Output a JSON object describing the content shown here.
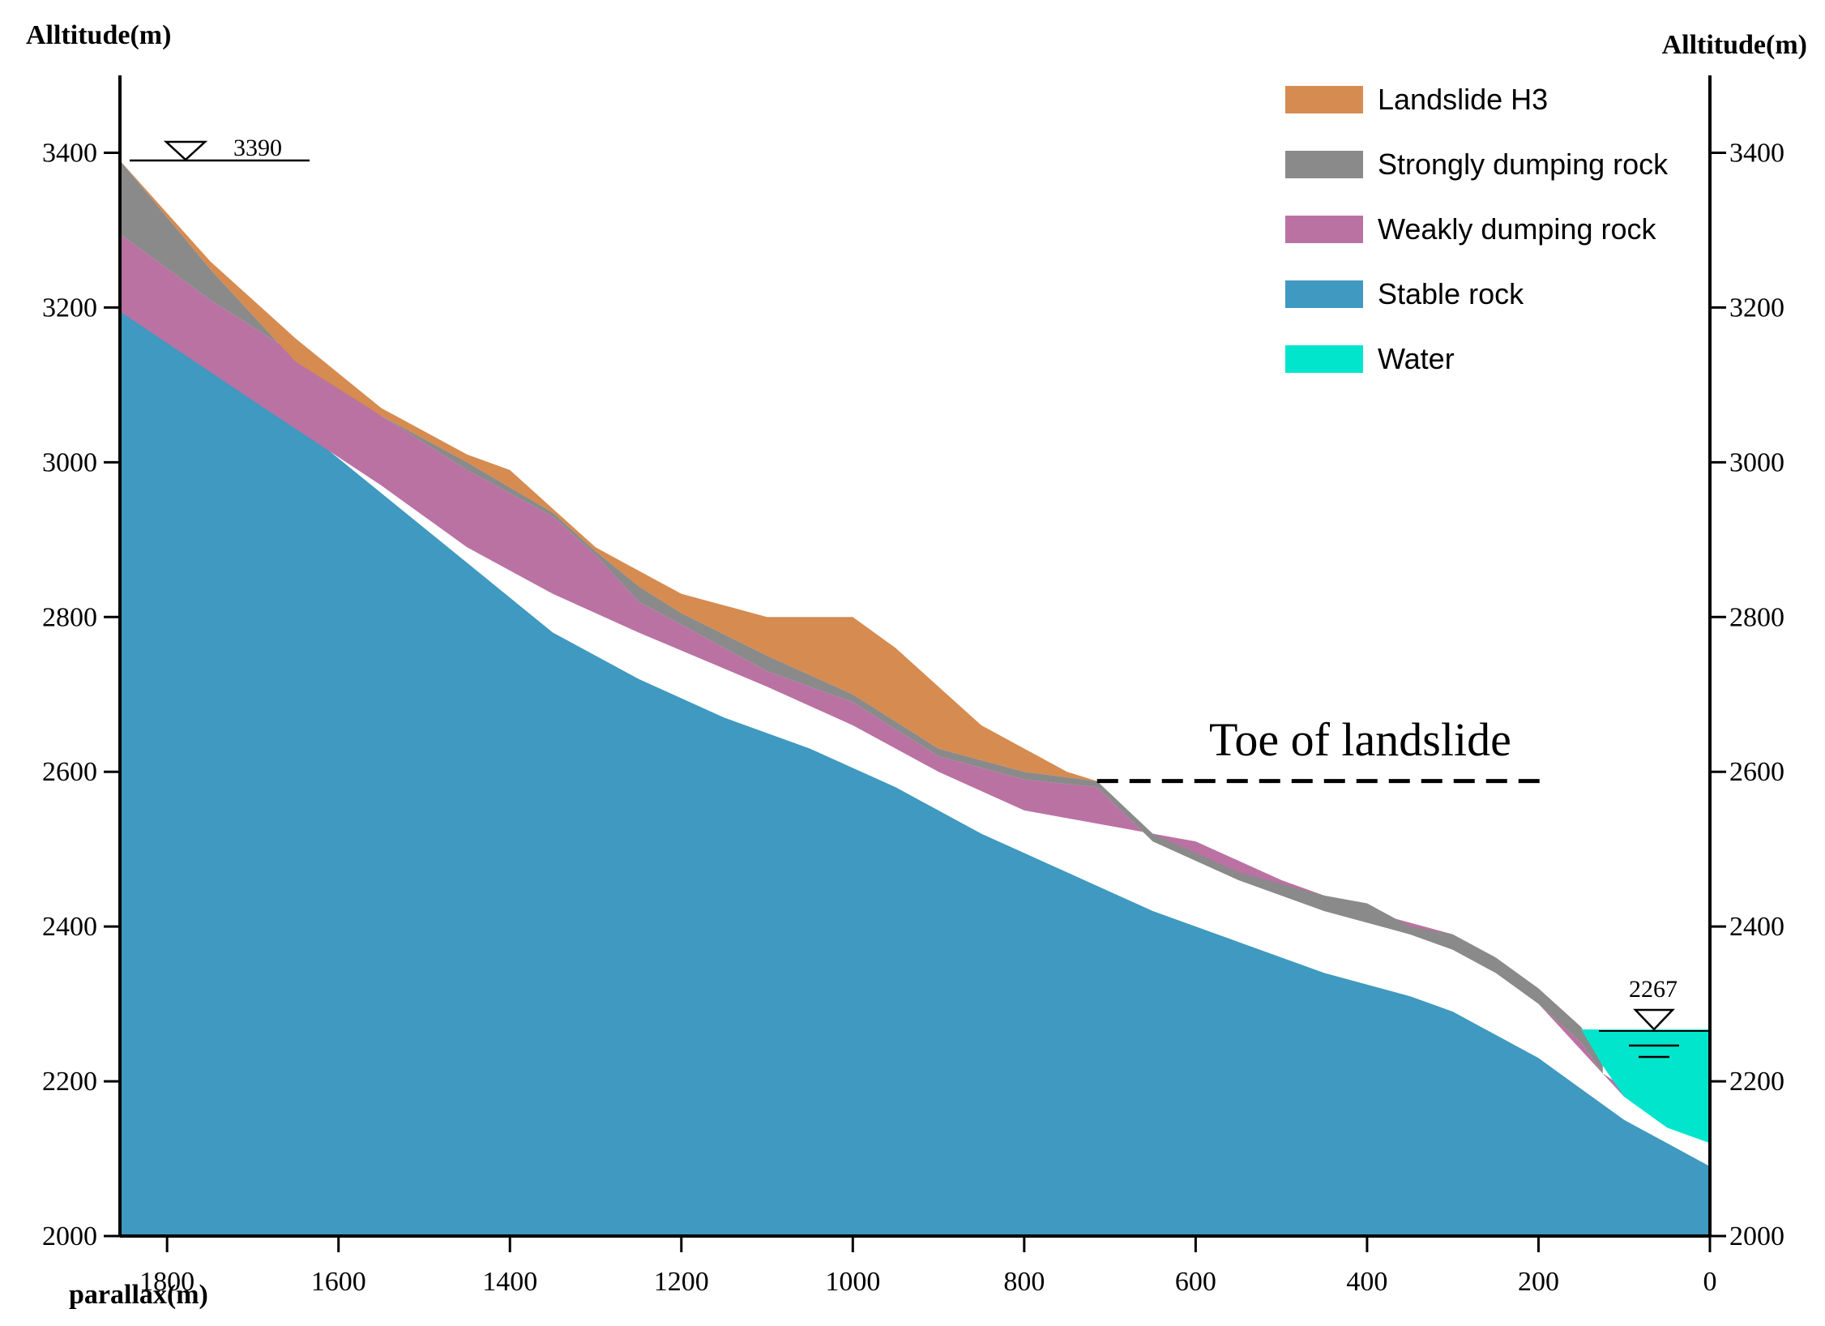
{
  "axes": {
    "left_title": "Alltitude(m)",
    "right_title": "Alltitude(m)",
    "x_title": "parallax(m)",
    "y_ticks": [
      "2000",
      "2200",
      "2400",
      "2600",
      "2800",
      "3000",
      "3200",
      "3400"
    ],
    "x_ticks": [
      "1800",
      "1600",
      "1400",
      "1200",
      "1000",
      "800",
      "600",
      "400",
      "200",
      "0"
    ],
    "x_range": [
      1855,
      0
    ],
    "y_range": [
      2000,
      3500
    ]
  },
  "annotations": {
    "top_level": "3390",
    "water_level": "2267",
    "toe_label": "Toe of landslide",
    "toe_elevation": 2588,
    "toe_parallax_range": [
      715,
      195
    ]
  },
  "legend": {
    "items": [
      {
        "label": "Landslide H3",
        "color": "#d68b50"
      },
      {
        "label": "Strongly dumping rock",
        "color": "#8a8a8a"
      },
      {
        "label": "Weakly dumping rock",
        "color": "#ba72a3"
      },
      {
        "label": "Stable rock",
        "color": "#3f99c0"
      },
      {
        "label": "Water",
        "color": "#00e5cc"
      }
    ]
  },
  "chart_data": {
    "type": "area",
    "title": "",
    "xlabel": "parallax(m)",
    "ylabel": "Alltitude(m)",
    "xlim": [
      1855,
      0
    ],
    "ylim": [
      2000,
      3500
    ],
    "layers": [
      {
        "name": "Landslide H3 surface",
        "points": [
          [
            1855,
            3390
          ],
          [
            1750,
            3260
          ],
          [
            1650,
            3160
          ],
          [
            1550,
            3070
          ],
          [
            1450,
            3010
          ],
          [
            1400,
            2990
          ],
          [
            1350,
            2940
          ],
          [
            1300,
            2890
          ],
          [
            1250,
            2860
          ],
          [
            1200,
            2830
          ],
          [
            1100,
            2800
          ],
          [
            1000,
            2800
          ],
          [
            950,
            2760
          ],
          [
            900,
            2710
          ],
          [
            850,
            2660
          ],
          [
            800,
            2630
          ],
          [
            750,
            2600
          ],
          [
            715,
            2588
          ]
        ]
      },
      {
        "name": "Strongly dumping rock top",
        "points": [
          [
            1855,
            3390
          ],
          [
            1750,
            3250
          ],
          [
            1650,
            3130
          ],
          [
            1550,
            3060
          ],
          [
            1450,
            3000
          ],
          [
            1350,
            2935
          ],
          [
            1300,
            2885
          ],
          [
            1250,
            2840
          ],
          [
            1200,
            2805
          ],
          [
            1100,
            2750
          ],
          [
            1000,
            2700
          ],
          [
            900,
            2630
          ],
          [
            800,
            2600
          ],
          [
            715,
            2588
          ],
          [
            650,
            2520
          ],
          [
            550,
            2470
          ],
          [
            450,
            2440
          ],
          [
            400,
            2430
          ],
          [
            350,
            2400
          ],
          [
            300,
            2390
          ],
          [
            250,
            2360
          ],
          [
            200,
            2320
          ],
          [
            150,
            2270
          ],
          [
            125,
            2220
          ]
        ]
      },
      {
        "name": "Strongly dumping rock base",
        "points": [
          [
            1855,
            3295
          ],
          [
            1750,
            3210
          ],
          [
            1650,
            3140
          ],
          [
            1550,
            3060
          ],
          [
            1450,
            2990
          ],
          [
            1350,
            2930
          ],
          [
            1300,
            2880
          ],
          [
            1250,
            2820
          ],
          [
            1200,
            2790
          ],
          [
            1100,
            2730
          ],
          [
            1000,
            2690
          ],
          [
            900,
            2620
          ],
          [
            800,
            2590
          ],
          [
            715,
            2580
          ],
          [
            650,
            2510
          ],
          [
            550,
            2460
          ],
          [
            450,
            2420
          ],
          [
            350,
            2390
          ],
          [
            300,
            2370
          ],
          [
            250,
            2340
          ],
          [
            200,
            2300
          ],
          [
            150,
            2250
          ],
          [
            125,
            2210
          ]
        ]
      },
      {
        "name": "Weakly dumping rock base",
        "points": [
          [
            1855,
            3195
          ],
          [
            1700,
            3080
          ],
          [
            1550,
            2970
          ],
          [
            1450,
            2890
          ],
          [
            1350,
            2830
          ],
          [
            1250,
            2780
          ],
          [
            1100,
            2710
          ],
          [
            1000,
            2660
          ],
          [
            900,
            2600
          ],
          [
            800,
            2550
          ],
          [
            700,
            2530
          ],
          [
            600,
            2510
          ],
          [
            500,
            2460
          ],
          [
            400,
            2420
          ],
          [
            300,
            2390
          ],
          [
            250,
            2340
          ],
          [
            200,
            2300
          ],
          [
            150,
            2240
          ],
          [
            100,
            2180
          ],
          [
            50,
            2150
          ],
          [
            0,
            2120
          ]
        ]
      },
      {
        "name": "Stable rock top",
        "points": [
          [
            1855,
            3195
          ],
          [
            1750,
            3130
          ],
          [
            1650,
            3050
          ],
          [
            1550,
            2960
          ],
          [
            1450,
            2870
          ],
          [
            1350,
            2780
          ],
          [
            1250,
            2720
          ],
          [
            1150,
            2670
          ],
          [
            1050,
            2630
          ],
          [
            950,
            2580
          ],
          [
            850,
            2520
          ],
          [
            750,
            2470
          ],
          [
            650,
            2420
          ],
          [
            550,
            2380
          ],
          [
            450,
            2340
          ],
          [
            350,
            2310
          ],
          [
            300,
            2290
          ],
          [
            250,
            2260
          ],
          [
            200,
            2230
          ],
          [
            150,
            2190
          ],
          [
            100,
            2150
          ],
          [
            50,
            2120
          ],
          [
            0,
            2090
          ]
        ]
      }
    ],
    "water": {
      "level": 2267,
      "points": [
        [
          150,
          2267
        ],
        [
          0,
          2267
        ],
        [
          0,
          2120
        ],
        [
          50,
          2140
        ],
        [
          100,
          2180
        ],
        [
          125,
          2220
        ],
        [
          150,
          2267
        ]
      ]
    }
  }
}
